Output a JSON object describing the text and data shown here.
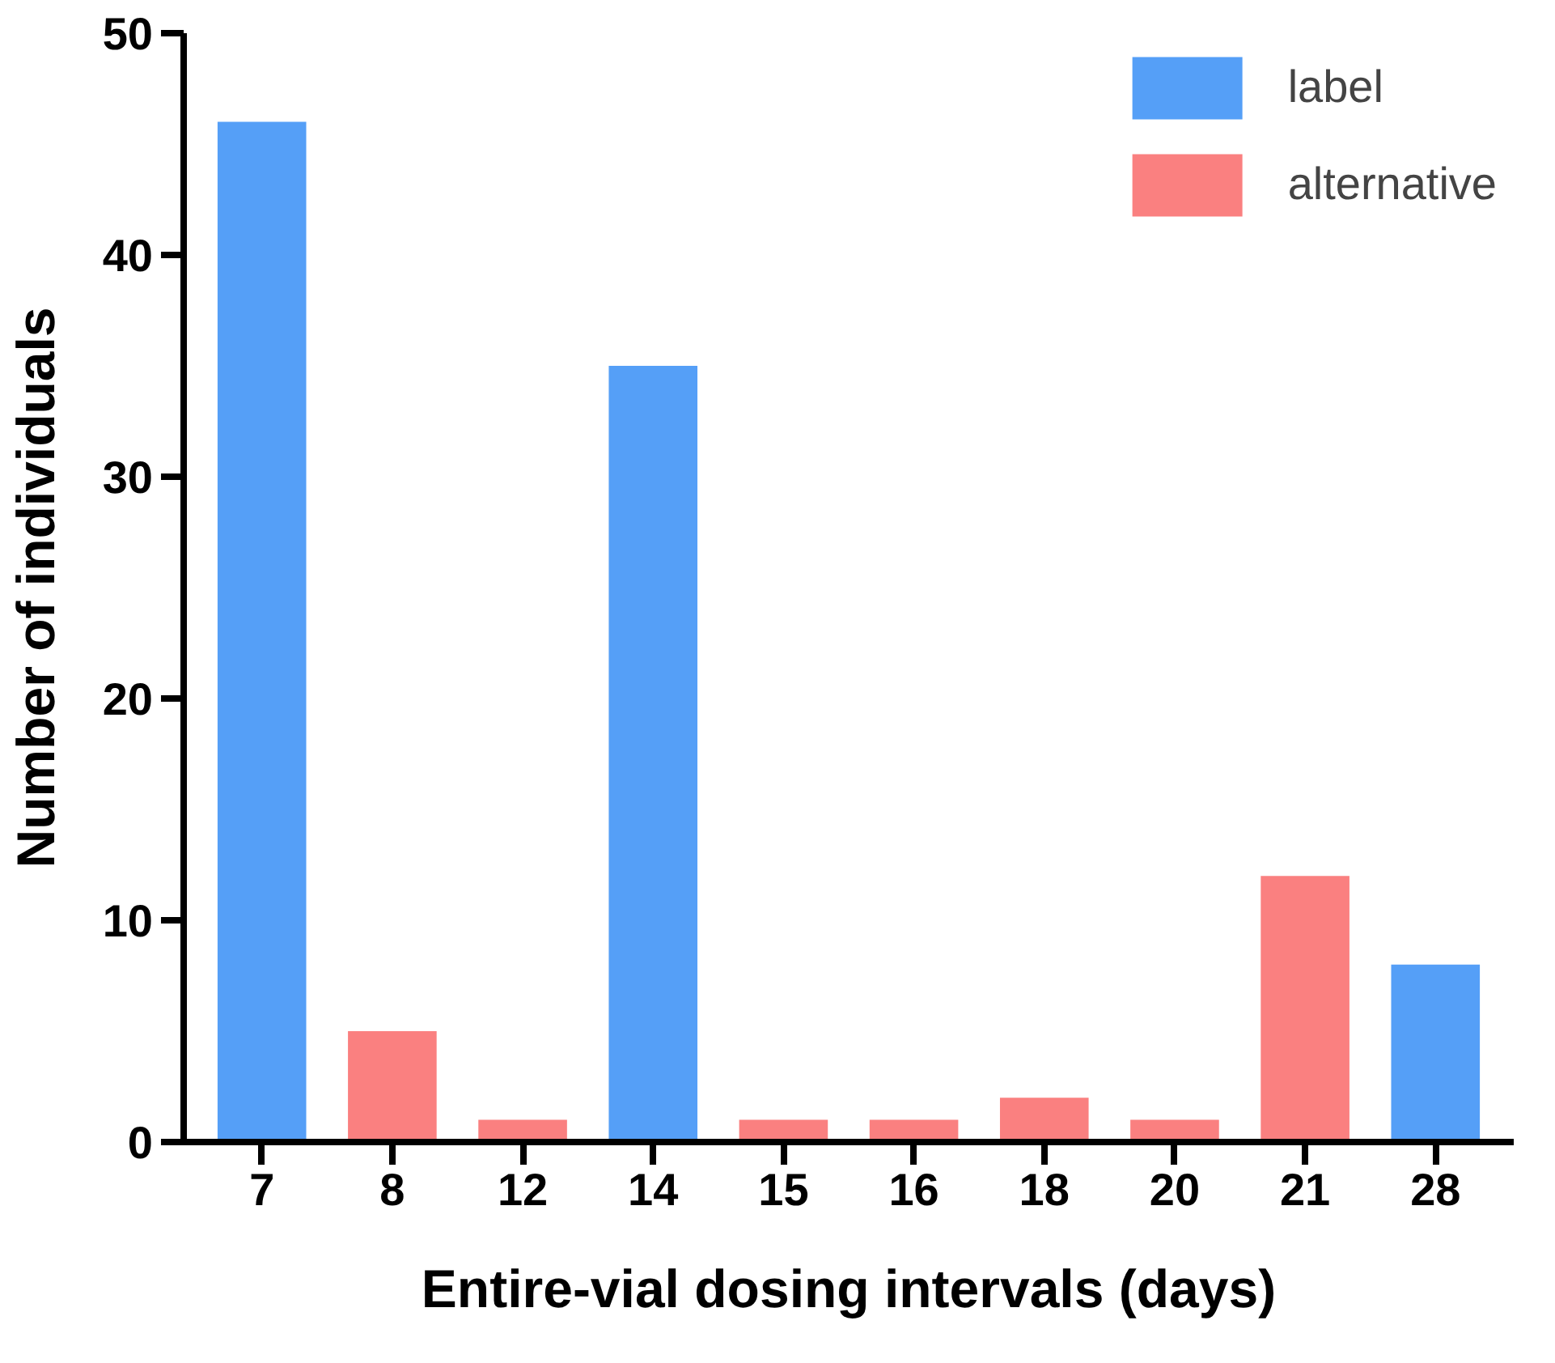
{
  "chart_data": {
    "type": "bar",
    "xlabel": "Entire-vial dosing intervals (days)",
    "ylabel": "Number of individuals",
    "categories": [
      "7",
      "8",
      "12",
      "14",
      "15",
      "16",
      "18",
      "20",
      "21",
      "28"
    ],
    "series": [
      {
        "name": "label",
        "color": "#559ff7",
        "values": [
          46,
          null,
          null,
          35,
          null,
          null,
          null,
          null,
          null,
          8
        ]
      },
      {
        "name": "alternative",
        "color": "#fa8080",
        "values": [
          null,
          5,
          1,
          null,
          1,
          1,
          2,
          1,
          12,
          null
        ]
      }
    ],
    "ylim": [
      0,
      50
    ],
    "yticks": [
      0,
      10,
      20,
      30,
      40,
      50
    ],
    "grid": false,
    "legend": "top right"
  }
}
